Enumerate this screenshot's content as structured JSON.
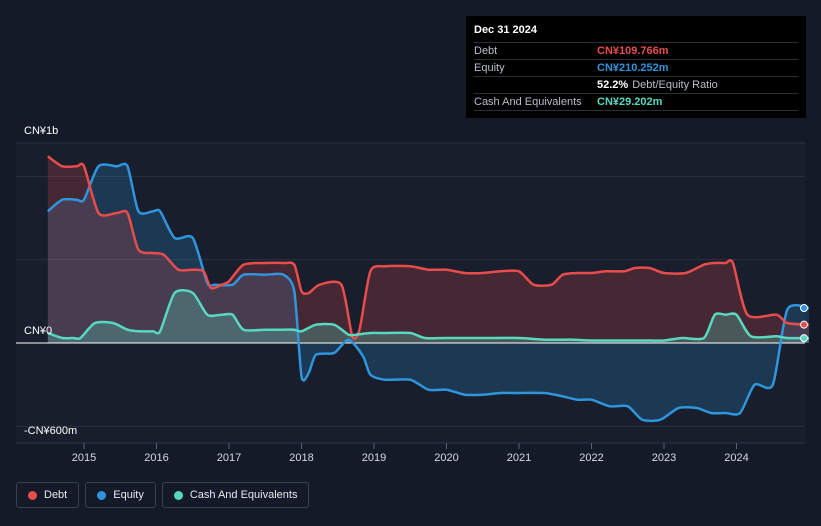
{
  "tooltip": {
    "date": "Dec 31 2024",
    "rows": [
      {
        "label": "Debt",
        "value": "CN¥109.766m",
        "color": "#e84c4c",
        "suffix": ""
      },
      {
        "label": "Equity",
        "value": "CN¥210.252m",
        "color": "#2f95dc",
        "suffix": ""
      },
      {
        "label": "",
        "value": "52.2%",
        "color": "#ffffff",
        "suffix": "Debt/Equity Ratio"
      },
      {
        "label": "Cash And Equivalents",
        "value": "CN¥29.202m",
        "color": "#59d8c0",
        "suffix": ""
      }
    ]
  },
  "y_axis_labels": {
    "top": "CN¥1b",
    "zero": "CN¥0",
    "bottom": "-CN¥600m"
  },
  "legend": [
    {
      "label": "Debt",
      "color": "#e84c4c"
    },
    {
      "label": "Equity",
      "color": "#2f95dc"
    },
    {
      "label": "Cash And Equivalents",
      "color": "#59d8c0"
    }
  ],
  "colors": {
    "debt": "#e84c4c",
    "equity": "#2f95dc",
    "cash": "#59d8c0",
    "background": "#141a27",
    "plot": "#181e2c"
  },
  "chart_data": {
    "type": "area",
    "xlabel": "",
    "ylabel": "",
    "ylim": [
      -600,
      1200
    ],
    "xlim": [
      2014.5,
      2025.0
    ],
    "x_ticks": [
      2015,
      2016,
      2017,
      2018,
      2019,
      2020,
      2021,
      2022,
      2023,
      2024
    ],
    "unit": "CN¥m",
    "series": [
      {
        "name": "Debt",
        "points": [
          [
            2014.5,
            1120
          ],
          [
            2014.7,
            1060
          ],
          [
            2014.9,
            1060
          ],
          [
            2015.0,
            1060
          ],
          [
            2015.2,
            780
          ],
          [
            2015.45,
            780
          ],
          [
            2015.6,
            780
          ],
          [
            2015.75,
            560
          ],
          [
            2015.95,
            540
          ],
          [
            2016.1,
            530
          ],
          [
            2016.3,
            440
          ],
          [
            2016.5,
            440
          ],
          [
            2016.65,
            430
          ],
          [
            2016.75,
            330
          ],
          [
            2016.9,
            350
          ],
          [
            2017.0,
            370
          ],
          [
            2017.2,
            470
          ],
          [
            2017.5,
            480
          ],
          [
            2017.75,
            480
          ],
          [
            2017.9,
            470
          ],
          [
            2018.0,
            310
          ],
          [
            2018.1,
            300
          ],
          [
            2018.25,
            350
          ],
          [
            2018.55,
            350
          ],
          [
            2018.7,
            40
          ],
          [
            2018.8,
            80
          ],
          [
            2018.95,
            430
          ],
          [
            2019.15,
            460
          ],
          [
            2019.5,
            460
          ],
          [
            2019.75,
            440
          ],
          [
            2020.0,
            440
          ],
          [
            2020.25,
            420
          ],
          [
            2020.5,
            420
          ],
          [
            2020.75,
            430
          ],
          [
            2021.0,
            430
          ],
          [
            2021.2,
            350
          ],
          [
            2021.45,
            350
          ],
          [
            2021.6,
            410
          ],
          [
            2021.8,
            420
          ],
          [
            2022.0,
            420
          ],
          [
            2022.2,
            430
          ],
          [
            2022.45,
            430
          ],
          [
            2022.6,
            450
          ],
          [
            2022.8,
            450
          ],
          [
            2023.0,
            420
          ],
          [
            2023.3,
            420
          ],
          [
            2023.55,
            470
          ],
          [
            2023.7,
            480
          ],
          [
            2023.85,
            480
          ],
          [
            2023.95,
            480
          ],
          [
            2024.15,
            170
          ],
          [
            2024.55,
            170
          ],
          [
            2024.7,
            120
          ],
          [
            2025.0,
            110
          ]
        ]
      },
      {
        "name": "Equity",
        "points": [
          [
            2014.5,
            790
          ],
          [
            2014.7,
            860
          ],
          [
            2014.9,
            860
          ],
          [
            2015.0,
            860
          ],
          [
            2015.2,
            1060
          ],
          [
            2015.45,
            1060
          ],
          [
            2015.6,
            1060
          ],
          [
            2015.75,
            790
          ],
          [
            2015.95,
            790
          ],
          [
            2016.05,
            790
          ],
          [
            2016.25,
            630
          ],
          [
            2016.5,
            630
          ],
          [
            2016.7,
            360
          ],
          [
            2016.8,
            350
          ],
          [
            2017.05,
            350
          ],
          [
            2017.2,
            410
          ],
          [
            2017.5,
            410
          ],
          [
            2017.75,
            410
          ],
          [
            2017.9,
            310
          ],
          [
            2018.0,
            -200
          ],
          [
            2018.1,
            -180
          ],
          [
            2018.2,
            -70
          ],
          [
            2018.45,
            -60
          ],
          [
            2018.65,
            20
          ],
          [
            2018.85,
            -80
          ],
          [
            2018.95,
            -190
          ],
          [
            2019.15,
            -220
          ],
          [
            2019.5,
            -220
          ],
          [
            2019.75,
            -280
          ],
          [
            2020.0,
            -280
          ],
          [
            2020.25,
            -310
          ],
          [
            2020.5,
            -310
          ],
          [
            2020.75,
            -300
          ],
          [
            2021.0,
            -300
          ],
          [
            2021.35,
            -300
          ],
          [
            2021.6,
            -320
          ],
          [
            2021.8,
            -340
          ],
          [
            2022.0,
            -340
          ],
          [
            2022.25,
            -380
          ],
          [
            2022.5,
            -380
          ],
          [
            2022.7,
            -460
          ],
          [
            2022.95,
            -460
          ],
          [
            2023.2,
            -390
          ],
          [
            2023.45,
            -390
          ],
          [
            2023.65,
            -420
          ],
          [
            2023.85,
            -420
          ],
          [
            2024.05,
            -420
          ],
          [
            2024.25,
            -250
          ],
          [
            2024.5,
            -250
          ],
          [
            2024.7,
            200
          ],
          [
            2025.0,
            210
          ]
        ]
      },
      {
        "name": "Cash And Equivalents",
        "points": [
          [
            2014.5,
            60
          ],
          [
            2014.7,
            30
          ],
          [
            2014.85,
            30
          ],
          [
            2014.95,
            30
          ],
          [
            2015.15,
            120
          ],
          [
            2015.4,
            120
          ],
          [
            2015.6,
            80
          ],
          [
            2015.75,
            70
          ],
          [
            2015.95,
            70
          ],
          [
            2016.05,
            70
          ],
          [
            2016.25,
            300
          ],
          [
            2016.5,
            300
          ],
          [
            2016.7,
            170
          ],
          [
            2016.9,
            170
          ],
          [
            2017.05,
            170
          ],
          [
            2017.2,
            80
          ],
          [
            2017.5,
            80
          ],
          [
            2017.75,
            80
          ],
          [
            2017.9,
            80
          ],
          [
            2018.0,
            70
          ],
          [
            2018.2,
            110
          ],
          [
            2018.45,
            110
          ],
          [
            2018.65,
            50
          ],
          [
            2018.75,
            50
          ],
          [
            2018.95,
            60
          ],
          [
            2019.15,
            60
          ],
          [
            2019.5,
            60
          ],
          [
            2019.7,
            30
          ],
          [
            2020.0,
            30
          ],
          [
            2020.5,
            30
          ],
          [
            2021.0,
            30
          ],
          [
            2021.35,
            20
          ],
          [
            2021.75,
            20
          ],
          [
            2022.0,
            15
          ],
          [
            2022.5,
            15
          ],
          [
            2022.8,
            15
          ],
          [
            2023.0,
            15
          ],
          [
            2023.25,
            30
          ],
          [
            2023.55,
            30
          ],
          [
            2023.7,
            170
          ],
          [
            2023.85,
            170
          ],
          [
            2024.0,
            170
          ],
          [
            2024.2,
            40
          ],
          [
            2024.55,
            40
          ],
          [
            2024.7,
            30
          ],
          [
            2025.0,
            29
          ]
        ]
      }
    ]
  }
}
